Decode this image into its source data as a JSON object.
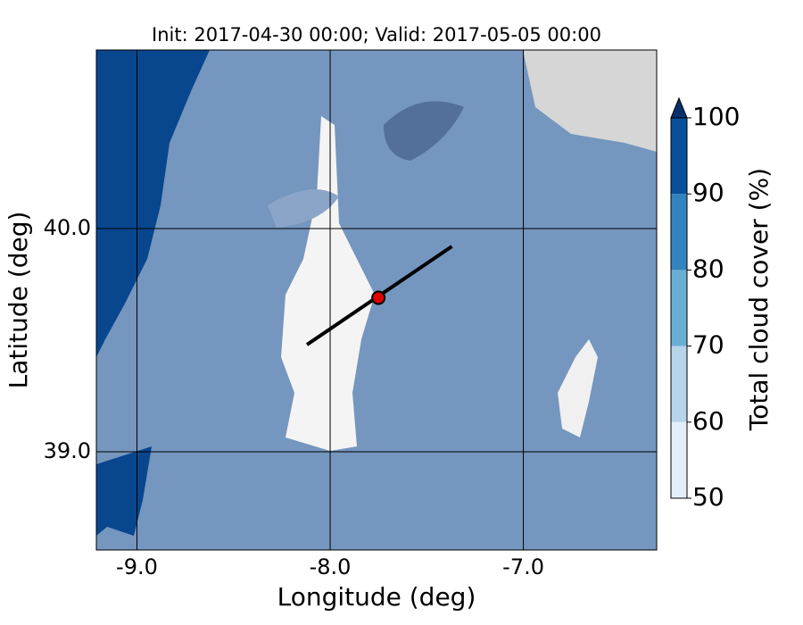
{
  "chart_data": {
    "type": "map",
    "title": "Init: 2017-04-30 00:00; Valid: 2017-05-05 00:00",
    "x_label": "Longitude (deg)",
    "y_label": "Latitude (deg)",
    "xlim": [
      -9.21,
      -6.31
    ],
    "ylim": [
      38.56,
      40.8
    ],
    "xticks": [
      {
        "value": -9,
        "label": "-9.0"
      },
      {
        "value": -8,
        "label": "-8.0"
      },
      {
        "value": -7,
        "label": "-7.0"
      }
    ],
    "yticks": [
      {
        "value": 39,
        "label": "39.0"
      },
      {
        "value": 40,
        "label": "40.0"
      }
    ],
    "grid": true,
    "section": {
      "lon": [
        -8.12,
        -7.37
      ],
      "lat": [
        39.48,
        39.92
      ],
      "color": "#000000"
    },
    "point": {
      "lon": -7.75,
      "lat": 39.69,
      "color": "#e00000"
    },
    "colorbar": {
      "label": "Total cloud cover (%)",
      "levels": [
        50,
        60,
        70,
        80,
        90,
        100
      ],
      "colors": [
        "#e3eef9",
        "#b7d4ea",
        "#6aaed6",
        "#3383be",
        "#08509b"
      ],
      "extend_color": "#08306b"
    }
  }
}
